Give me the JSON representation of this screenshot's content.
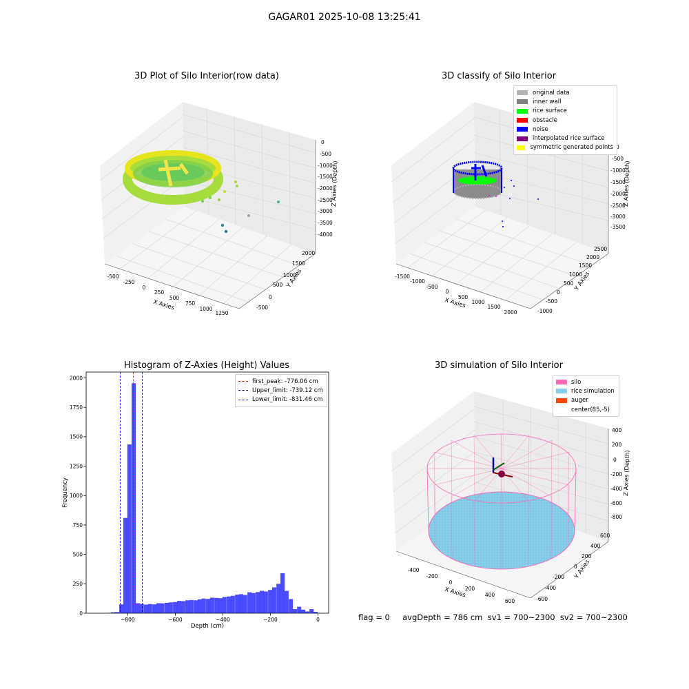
{
  "figure": {
    "suptitle": "GAGAR01 2025-10-08 13:25:41",
    "status_text": "flag = 0     avgDepth = 786 cm  sv1 = 700~2300  sv2 = 700~2300"
  },
  "panels": {
    "raw": {
      "title": "3D Plot of Silo Interior(row data)",
      "xlabel": "X Axies",
      "ylabel": "Y Axies",
      "zlabel": "Z Axies (Depth)",
      "xticks": [
        "-500",
        "-250",
        "0",
        "250",
        "500",
        "750",
        "1000",
        "1250"
      ],
      "yticks": [
        "-500",
        "0",
        "500",
        "1000",
        "1500",
        "2000"
      ],
      "zticks": [
        "0",
        "-500",
        "-1000",
        "-1500",
        "-2000",
        "-2500",
        "-3000",
        "-3500",
        "-4000"
      ]
    },
    "classify": {
      "title": "3D classify of Silo Interior",
      "xlabel": "X Axies",
      "ylabel": "Y Axies",
      "zlabel": "Z Axies (Depth)",
      "xticks": [
        "-1500",
        "-1000",
        "-500",
        "0",
        "500",
        "1000",
        "1500",
        "2000"
      ],
      "yticks": [
        "-1000",
        "-500",
        "0",
        "500",
        "1000",
        "1500",
        "2000",
        "2500"
      ],
      "zticks": [
        "0",
        "-500",
        "-1000",
        "-1500",
        "-2000",
        "-2500",
        "-3000",
        "-3500"
      ],
      "legend": [
        {
          "label": "original data",
          "color": "#b3b3b3"
        },
        {
          "label": "inner wall",
          "color": "#808080"
        },
        {
          "label": "rice surface",
          "color": "#00ff00"
        },
        {
          "label": "obstacle",
          "color": "#ff0000"
        },
        {
          "label": "noise",
          "color": "#0000ff"
        },
        {
          "label": "interpolated rice surface",
          "color": "#800080"
        },
        {
          "label": "symmetric generated points",
          "color": "#ffff00"
        }
      ]
    },
    "simulation": {
      "title": "3D simulation of Silo Interior",
      "xlabel": "X Axies",
      "ylabel": "Y Axies",
      "zlabel": "Z Axies (Depth)",
      "xticks": [
        "-400",
        "-200",
        "0",
        "200",
        "400",
        "600"
      ],
      "yticks": [
        "-600",
        "-400",
        "-200",
        "0",
        "200",
        "400",
        "600"
      ],
      "zticks": [
        "400",
        "200",
        "0",
        "-200",
        "-400",
        "-600",
        "-800"
      ],
      "legend": [
        {
          "label": "silo",
          "color": "#ff69b4"
        },
        {
          "label": "rice simulation",
          "color": "#87ceeb"
        },
        {
          "label": "auger",
          "color": "#ff4500"
        },
        {
          "label": "center(85,-5)",
          "color": "#ffffff"
        }
      ]
    }
  },
  "chart_data": {
    "type": "bar",
    "title": "Histogram of Z-Axies (Height) Values",
    "xlabel": "Depth (cm)",
    "ylabel": "Frequency",
    "xlim": [
      -975,
      45
    ],
    "ylim": [
      0,
      2050
    ],
    "xticks": [
      -800,
      -600,
      -400,
      -200,
      0
    ],
    "yticks": [
      0,
      250,
      500,
      750,
      1000,
      1250,
      1500,
      1750,
      2000
    ],
    "bar_color": "#0000ff",
    "bar_alpha": 0.7,
    "bin_width": 17.4,
    "bins": [
      {
        "x": -880,
        "value": 3
      },
      {
        "x": -862,
        "value": 8
      },
      {
        "x": -845,
        "value": 10
      },
      {
        "x": -827,
        "value": 75
      },
      {
        "x": -810,
        "value": 810
      },
      {
        "x": -793,
        "value": 1435
      },
      {
        "x": -775,
        "value": 1955
      },
      {
        "x": -758,
        "value": 85
      },
      {
        "x": -741,
        "value": 80
      },
      {
        "x": -723,
        "value": 73
      },
      {
        "x": -706,
        "value": 78
      },
      {
        "x": -688,
        "value": 75
      },
      {
        "x": -671,
        "value": 85
      },
      {
        "x": -654,
        "value": 84
      },
      {
        "x": -636,
        "value": 88
      },
      {
        "x": -619,
        "value": 92
      },
      {
        "x": -601,
        "value": 95
      },
      {
        "x": -584,
        "value": 105
      },
      {
        "x": -567,
        "value": 103
      },
      {
        "x": -549,
        "value": 110
      },
      {
        "x": -532,
        "value": 112
      },
      {
        "x": -514,
        "value": 110
      },
      {
        "x": -497,
        "value": 118
      },
      {
        "x": -480,
        "value": 125
      },
      {
        "x": -462,
        "value": 122
      },
      {
        "x": -445,
        "value": 132
      },
      {
        "x": -427,
        "value": 130
      },
      {
        "x": -410,
        "value": 128
      },
      {
        "x": -393,
        "value": 138
      },
      {
        "x": -375,
        "value": 142
      },
      {
        "x": -358,
        "value": 148
      },
      {
        "x": -340,
        "value": 158
      },
      {
        "x": -323,
        "value": 162
      },
      {
        "x": -306,
        "value": 155
      },
      {
        "x": -288,
        "value": 178
      },
      {
        "x": -271,
        "value": 172
      },
      {
        "x": -253,
        "value": 180
      },
      {
        "x": -236,
        "value": 190
      },
      {
        "x": -219,
        "value": 185
      },
      {
        "x": -201,
        "value": 198
      },
      {
        "x": -184,
        "value": 220
      },
      {
        "x": -166,
        "value": 250
      },
      {
        "x": -149,
        "value": 340
      },
      {
        "x": -132,
        "value": 190
      },
      {
        "x": -114,
        "value": 120
      },
      {
        "x": -97,
        "value": 35
      },
      {
        "x": -79,
        "value": 55
      },
      {
        "x": -62,
        "value": 30
      },
      {
        "x": -45,
        "value": 15
      },
      {
        "x": -27,
        "value": 35
      },
      {
        "x": -10,
        "value": 12
      }
    ],
    "vlines": [
      {
        "label": "first_peak: -776.06 cm",
        "x": -776.06,
        "color": "#ff0000"
      },
      {
        "label": "Upper_limit: -739.12 cm",
        "x": -739.12,
        "color": "#00008b"
      },
      {
        "label": "Lower_limit: -831.46 cm",
        "x": -831.46,
        "color": "#0000ff"
      }
    ],
    "legend_position": "top-right"
  }
}
